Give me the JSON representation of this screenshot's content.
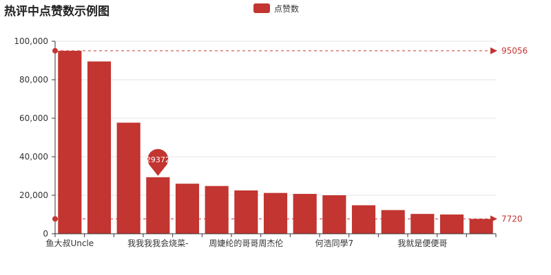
{
  "chart_data": {
    "type": "bar",
    "title": "热评中点赞数示例图",
    "legend": {
      "entries": [
        "点赞数"
      ],
      "placement": "top-center"
    },
    "series": [
      {
        "name": "点赞数",
        "color": "#c23531",
        "values": [
          95056,
          89500,
          57700,
          29372,
          26000,
          24800,
          22500,
          21200,
          20700,
          20000,
          14800,
          12300,
          10300,
          10000,
          7720
        ]
      }
    ],
    "categories_shown": [
      "鱼大叔Uncle",
      "我我我我会烧菜-",
      "周婕纶的哥哥周杰伦",
      "何浩同學7",
      "我就是便便哥"
    ],
    "ylim": [
      0,
      100000
    ],
    "yticks": [
      "0",
      "20,000",
      "40,000",
      "60,000",
      "80,000",
      "100,000"
    ],
    "grid": "horizontal",
    "mark_lines": [
      {
        "name": "max",
        "value": "95056"
      },
      {
        "name": "min",
        "value": "7720"
      }
    ],
    "mark_point": {
      "label": "29372",
      "value": 29372,
      "index": 3
    }
  }
}
